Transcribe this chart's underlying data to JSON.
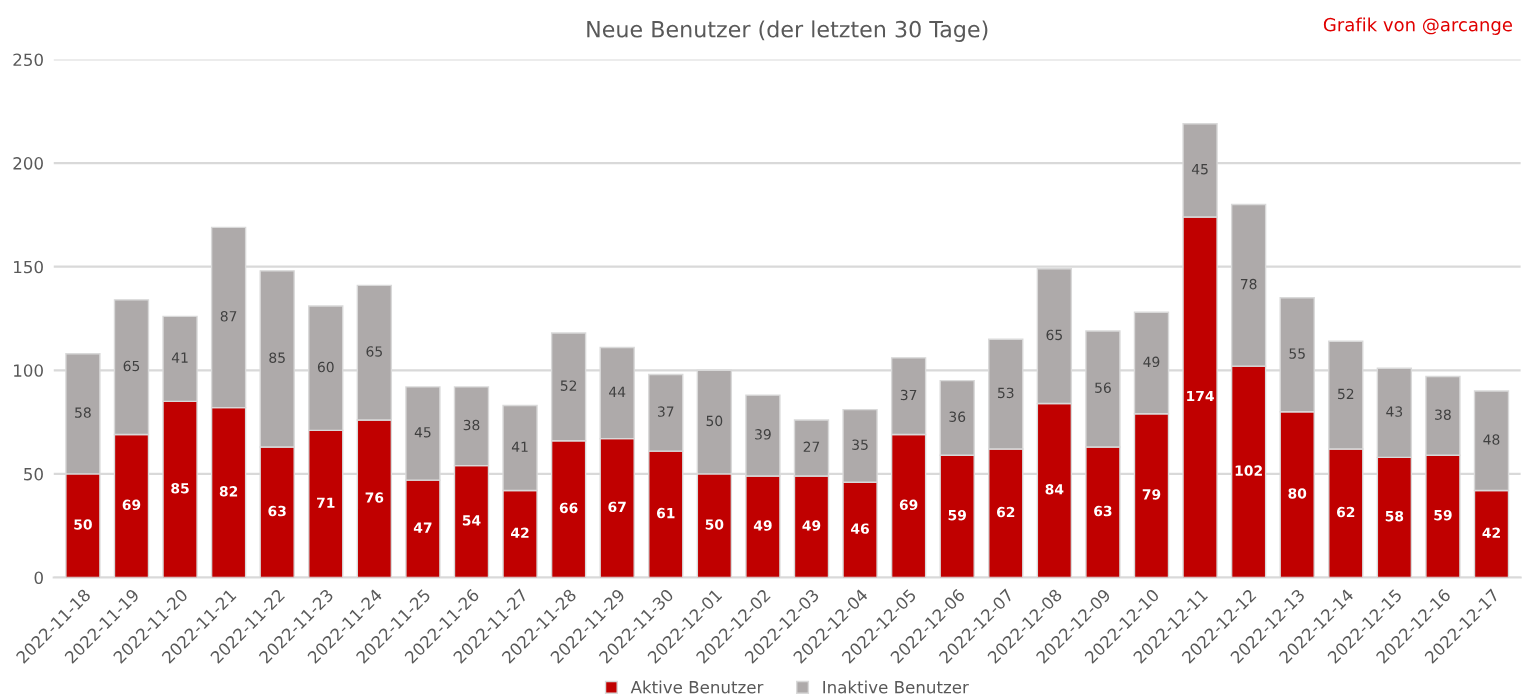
{
  "chart_data": {
    "type": "bar",
    "title": "Neue Benutzer (der letzten 30 Tage)",
    "stacked": true,
    "data_labels": true,
    "grid": "y",
    "legend": "bottom",
    "categories": [
      "2022-11-18",
      "2022-11-19",
      "2022-11-20",
      "2022-11-21",
      "2022-11-22",
      "2022-11-23",
      "2022-11-24",
      "2022-11-25",
      "2022-11-26",
      "2022-11-27",
      "2022-11-28",
      "2022-11-29",
      "2022-11-30",
      "2022-12-01",
      "2022-12-02",
      "2022-12-03",
      "2022-12-04",
      "2022-12-05",
      "2022-12-06",
      "2022-12-07",
      "2022-12-08",
      "2022-12-09",
      "2022-12-10",
      "2022-12-11",
      "2022-12-12",
      "2022-12-13",
      "2022-12-14",
      "2022-12-15",
      "2022-12-16",
      "2022-12-17"
    ],
    "series": [
      {
        "name": "Aktive Benutzer",
        "color": "#c00000",
        "values": [
          50,
          69,
          85,
          82,
          63,
          71,
          76,
          47,
          54,
          42,
          66,
          67,
          61,
          50,
          49,
          49,
          46,
          69,
          59,
          62,
          84,
          63,
          79,
          174,
          102,
          80,
          62,
          58,
          59,
          42
        ]
      },
      {
        "name": "Inaktive Benutzer",
        "color": "#aeaaaa",
        "values": [
          58,
          65,
          41,
          87,
          85,
          60,
          65,
          45,
          38,
          41,
          52,
          44,
          37,
          50,
          39,
          27,
          35,
          37,
          36,
          53,
          65,
          56,
          49,
          45,
          78,
          55,
          52,
          43,
          38,
          48
        ]
      }
    ],
    "ylim": [
      0,
      250
    ],
    "yticks": [
      0,
      50,
      100,
      150,
      200,
      250
    ],
    "annotations": [
      "Grafik von @arcange"
    ]
  }
}
